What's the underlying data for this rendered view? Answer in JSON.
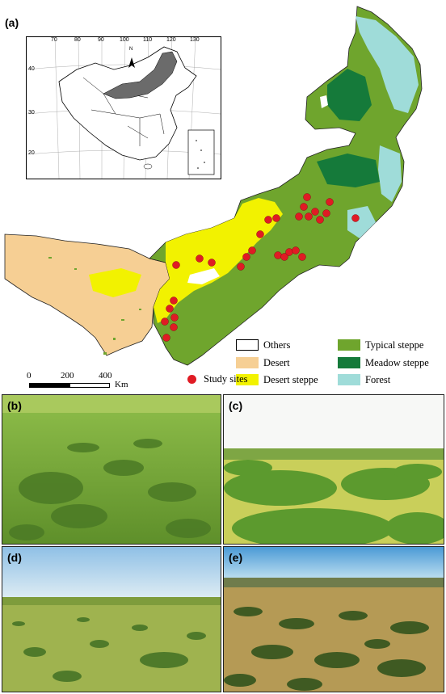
{
  "panels": {
    "a": "(a)",
    "b": "(b)",
    "c": "(c)",
    "d": "(d)",
    "e": "(e)"
  },
  "inset": {
    "lon_ticks": [
      "70",
      "80",
      "90",
      "100",
      "110",
      "120",
      "130"
    ],
    "lat_ticks": [
      "40",
      "30",
      "20"
    ],
    "north_label": "N"
  },
  "legend": {
    "others": "Others",
    "desert": "Desert",
    "desert_steppe": "Desert steppe",
    "typical_steppe": "Typical steppe",
    "meadow_steppe": "Meadow steppe",
    "forest": "Forest",
    "study_sites": "Study sites"
  },
  "colors": {
    "desert": "#f6cf94",
    "desert_steppe": "#f2f200",
    "typical_steppe": "#6fa52d",
    "meadow_steppe": "#157a3a",
    "forest": "#9fdcd9",
    "study_sites": "#e01b24",
    "province_shaded": "#6b6b6b"
  },
  "scale_bar": {
    "ticks": [
      "0",
      "200",
      "400"
    ],
    "unit": "Km"
  }
}
